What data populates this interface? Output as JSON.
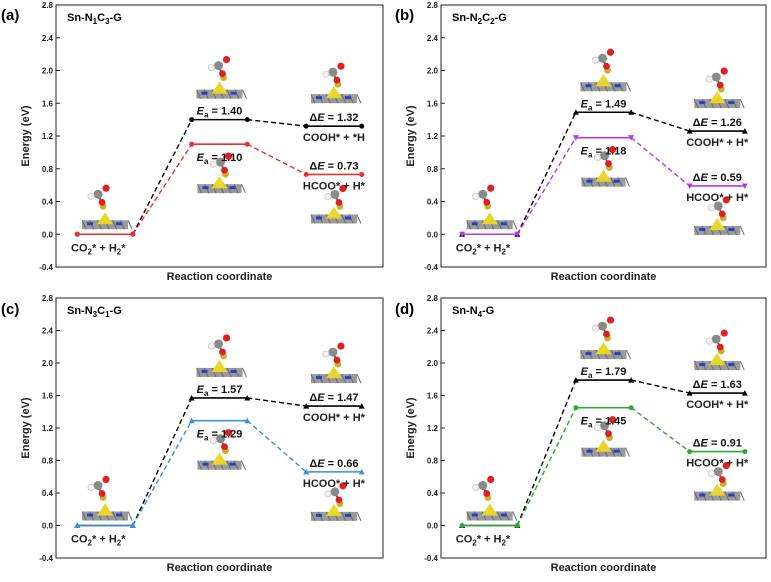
{
  "chart_data": [
    {
      "type": "line",
      "panel": "(a)",
      "title": "Sn-N1C3-G",
      "title_parts": [
        {
          "t": "Sn-N",
          "sub": "1"
        },
        {
          "t": "C",
          "sub": "3"
        },
        {
          "t": "-G",
          "sub": ""
        }
      ],
      "xlabel": "Reaction coordinate",
      "ylabel": "Energy (eV)",
      "ylim": [
        -0.4,
        2.8
      ],
      "yticks": [
        "-0.4",
        "0.0",
        "0.4",
        "0.8",
        "1.2",
        "1.6",
        "2.0",
        "2.4",
        "2.8"
      ],
      "states": [
        0,
        1,
        2
      ],
      "series": [
        {
          "path": "COOH",
          "color": "#000000",
          "values": [
            0.0,
            1.4,
            1.32
          ]
        },
        {
          "path": "HCOO",
          "color": "#e8312e",
          "values": [
            0.0,
            1.1,
            0.73
          ]
        }
      ],
      "labels": {
        "initial": "CO2* + H2*",
        "ts_upper": "1.40",
        "ts_lower": "1.10",
        "final_upper": "COOH* + *H",
        "final_lower": "HCOO* + H*",
        "de_upper": "1.32",
        "de_lower": "0.73"
      },
      "layout": "a"
    },
    {
      "type": "line",
      "panel": "(b)",
      "title": "Sn-N2C2-G",
      "title_parts": [
        {
          "t": "Sn-N",
          "sub": "2"
        },
        {
          "t": "C",
          "sub": "2"
        },
        {
          "t": "-G",
          "sub": ""
        }
      ],
      "xlabel": "Reaction coordinate",
      "ylabel": "Energy (eV)",
      "ylim": [
        -0.4,
        2.8
      ],
      "yticks": [
        "-0.4",
        "0.0",
        "0.4",
        "0.8",
        "1.2",
        "1.6",
        "2.0",
        "2.4",
        "2.8"
      ],
      "states": [
        0,
        1,
        2
      ],
      "series": [
        {
          "path": "COOH",
          "color": "#000000",
          "values": [
            0.0,
            1.49,
            1.26
          ]
        },
        {
          "path": "HCOO",
          "color": "#b03ce6",
          "values": [
            0.0,
            1.18,
            0.59
          ]
        }
      ],
      "labels": {
        "initial": "CO2* + H2*",
        "ts_upper": "1.49",
        "ts_lower": "1.18",
        "final_upper": "COOH* + H*",
        "final_lower": "HCOO* + H*",
        "de_upper": "1.26",
        "de_lower": "0.59"
      },
      "layout": "b"
    },
    {
      "type": "line",
      "panel": "(c)",
      "title": "Sn-N3C1-G",
      "title_parts": [
        {
          "t": "Sn-N",
          "sub": "3"
        },
        {
          "t": "C",
          "sub": "1"
        },
        {
          "t": "-G",
          "sub": ""
        }
      ],
      "xlabel": "Reaction coordinate",
      "ylabel": "Energy (eV)",
      "ylim": [
        -0.4,
        2.8
      ],
      "yticks": [
        "-0.4",
        "0.0",
        "0.4",
        "0.8",
        "1.2",
        "1.6",
        "2.0",
        "2.4",
        "2.8"
      ],
      "states": [
        0,
        1,
        2
      ],
      "series": [
        {
          "path": "COOH",
          "color": "#000000",
          "values": [
            0.0,
            1.57,
            1.47
          ]
        },
        {
          "path": "HCOO",
          "color": "#3a8fd8",
          "values": [
            0.0,
            1.29,
            0.66
          ]
        }
      ],
      "labels": {
        "initial": "CO2* + H2*",
        "ts_upper": "1.57",
        "ts_lower": "1.29",
        "final_upper": "COOH* + H*",
        "final_lower": "HCOO* + H*",
        "de_upper": "1.47",
        "de_lower": "0.66"
      },
      "layout": "b"
    },
    {
      "type": "line",
      "panel": "(d)",
      "title": "Sn-N4-G",
      "title_parts": [
        {
          "t": "Sn-N",
          "sub": "4"
        },
        {
          "t": "-G",
          "sub": ""
        }
      ],
      "xlabel": "Reaction coordinate",
      "ylabel": "Energy (eV)",
      "ylim": [
        -0.4,
        2.8
      ],
      "yticks": [
        "-0.4",
        "0.0",
        "0.4",
        "0.8",
        "1.2",
        "1.6",
        "2.0",
        "2.4",
        "2.8"
      ],
      "states": [
        0,
        1,
        2
      ],
      "series": [
        {
          "path": "COOH",
          "color": "#000000",
          "values": [
            0.0,
            1.79,
            1.63
          ]
        },
        {
          "path": "HCOO",
          "color": "#2fa83a",
          "values": [
            0.0,
            1.45,
            0.91
          ]
        }
      ],
      "labels": {
        "initial": "CO2* + H2*",
        "ts_upper": "1.79",
        "ts_lower": "1.45",
        "final_upper": "COOH* + H*",
        "final_lower": "HCOO* + H*",
        "de_upper": "1.63",
        "de_lower": "0.91"
      },
      "layout": "b"
    }
  ]
}
